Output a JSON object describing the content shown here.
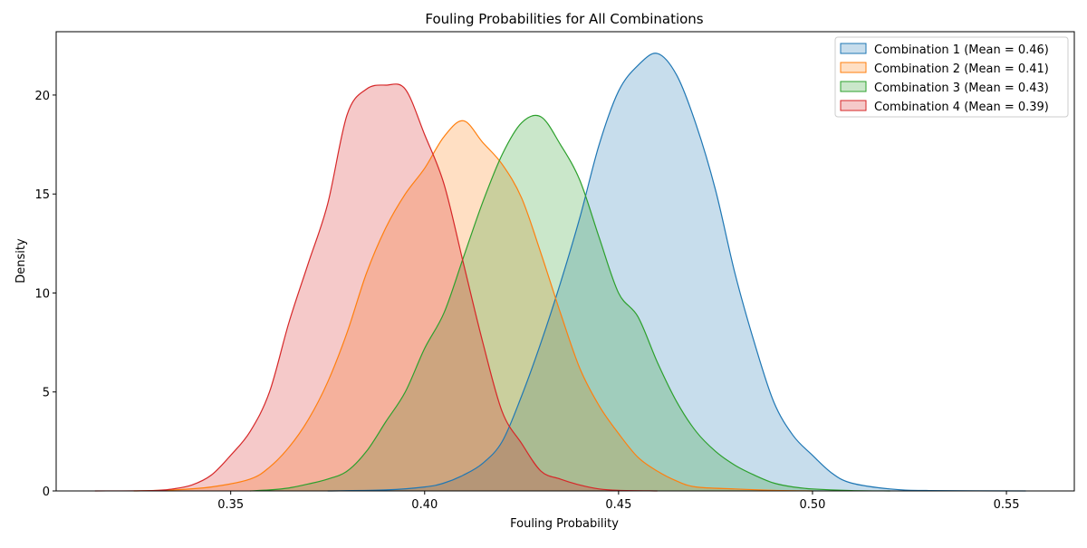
{
  "chart_data": {
    "type": "area",
    "title": "Fouling Probabilities for All Combinations",
    "xlabel": "Fouling Probability",
    "ylabel": "Density",
    "xlim": [
      0.305,
      0.5675
    ],
    "ylim": [
      0,
      23.2
    ],
    "xticks": [
      0.35,
      0.4,
      0.45,
      0.5,
      0.55
    ],
    "xtick_labels": [
      "0.35",
      "0.40",
      "0.45",
      "0.50",
      "0.55"
    ],
    "yticks": [
      0,
      5,
      10,
      15,
      20
    ],
    "ytick_labels": [
      "0",
      "5",
      "10",
      "15",
      "20"
    ],
    "grid": false,
    "legend_position": "top-right",
    "series": [
      {
        "name": "Combination 1 (Mean = 0.46)",
        "color": "#1f77b4",
        "x": [
          0.375,
          0.39,
          0.4,
          0.405,
          0.41,
          0.415,
          0.42,
          0.425,
          0.43,
          0.435,
          0.44,
          0.445,
          0.45,
          0.455,
          0.46,
          0.465,
          0.47,
          0.475,
          0.48,
          0.485,
          0.49,
          0.495,
          0.5,
          0.505,
          0.51,
          0.52,
          0.53,
          0.555
        ],
        "y": [
          0,
          0.05,
          0.2,
          0.4,
          0.8,
          1.4,
          2.5,
          4.8,
          7.5,
          10.5,
          13.8,
          17.5,
          20.2,
          21.5,
          22.1,
          21.0,
          18.5,
          15.2,
          11.0,
          7.5,
          4.5,
          2.8,
          1.8,
          0.9,
          0.4,
          0.1,
          0.02,
          0
        ]
      },
      {
        "name": "Combination 2 (Mean = 0.41)",
        "color": "#ff7f0e",
        "x": [
          0.325,
          0.335,
          0.345,
          0.355,
          0.36,
          0.365,
          0.37,
          0.375,
          0.38,
          0.385,
          0.39,
          0.395,
          0.4,
          0.405,
          0.41,
          0.415,
          0.42,
          0.425,
          0.43,
          0.435,
          0.44,
          0.445,
          0.45,
          0.455,
          0.46,
          0.465,
          0.47,
          0.48,
          0.49,
          0.5
        ],
        "y": [
          0,
          0.05,
          0.2,
          0.6,
          1.2,
          2.2,
          3.6,
          5.5,
          8.0,
          11.0,
          13.3,
          15.0,
          16.3,
          17.9,
          18.7,
          17.6,
          16.5,
          14.8,
          12.0,
          9.0,
          6.2,
          4.3,
          2.9,
          1.7,
          1.0,
          0.5,
          0.2,
          0.1,
          0.03,
          0
        ]
      },
      {
        "name": "Combination 3 (Mean = 0.43)",
        "color": "#2ca02c",
        "x": [
          0.355,
          0.36,
          0.365,
          0.37,
          0.375,
          0.38,
          0.385,
          0.39,
          0.395,
          0.4,
          0.405,
          0.41,
          0.415,
          0.42,
          0.425,
          0.43,
          0.435,
          0.44,
          0.445,
          0.45,
          0.455,
          0.46,
          0.465,
          0.47,
          0.475,
          0.48,
          0.485,
          0.49,
          0.495,
          0.5,
          0.51,
          0.52
        ],
        "y": [
          0,
          0.05,
          0.15,
          0.35,
          0.6,
          1.0,
          2.0,
          3.5,
          5.0,
          7.2,
          9.0,
          11.8,
          14.6,
          17.0,
          18.6,
          18.9,
          17.5,
          15.7,
          12.8,
          10.0,
          8.8,
          6.5,
          4.5,
          3.0,
          2.0,
          1.3,
          0.8,
          0.4,
          0.2,
          0.1,
          0.02,
          0
        ]
      },
      {
        "name": "Combination 4 (Mean = 0.39)",
        "color": "#d62728",
        "x": [
          0.315,
          0.33,
          0.335,
          0.34,
          0.345,
          0.35,
          0.355,
          0.36,
          0.365,
          0.37,
          0.375,
          0.38,
          0.385,
          0.39,
          0.395,
          0.4,
          0.405,
          0.41,
          0.415,
          0.42,
          0.425,
          0.43,
          0.435,
          0.44,
          0.445,
          0.45,
          0.46
        ],
        "y": [
          0,
          0.02,
          0.1,
          0.3,
          0.8,
          1.8,
          3.0,
          5.0,
          8.5,
          11.5,
          14.5,
          19.0,
          20.3,
          20.5,
          20.3,
          18.0,
          15.5,
          11.5,
          7.5,
          4.0,
          2.4,
          1.0,
          0.6,
          0.3,
          0.1,
          0.03,
          0
        ]
      }
    ]
  }
}
